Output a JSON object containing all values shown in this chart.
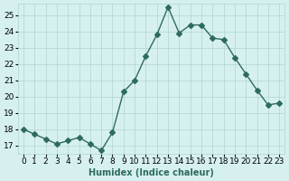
{
  "x": [
    0,
    1,
    2,
    3,
    4,
    5,
    6,
    7,
    8,
    9,
    10,
    11,
    12,
    13,
    14,
    15,
    16,
    17,
    18,
    19,
    20,
    21,
    22,
    23
  ],
  "y": [
    18.0,
    17.7,
    17.4,
    17.1,
    17.3,
    17.5,
    17.1,
    16.7,
    17.8,
    20.3,
    21.0,
    22.5,
    23.8,
    25.5,
    23.9,
    24.4,
    24.4,
    23.6,
    23.5,
    22.4,
    21.4,
    20.4,
    19.5,
    19.6
  ],
  "xlabel": "Humidex (Indice chaleur)",
  "ylabel": "",
  "xlim": [
    -0.5,
    23.5
  ],
  "ylim": [
    16.5,
    25.7
  ],
  "yticks": [
    17,
    18,
    19,
    20,
    21,
    22,
    23,
    24,
    25
  ],
  "xticks": [
    0,
    1,
    2,
    3,
    4,
    5,
    6,
    7,
    8,
    9,
    10,
    11,
    12,
    13,
    14,
    15,
    16,
    17,
    18,
    19,
    20,
    21,
    22,
    23
  ],
  "line_color": "#2e6b5e",
  "marker": "D",
  "marker_size": 3,
  "bg_color": "#d6f0f0",
  "grid_color": "#b0d4d4",
  "label_fontsize": 7,
  "tick_fontsize": 6.5
}
